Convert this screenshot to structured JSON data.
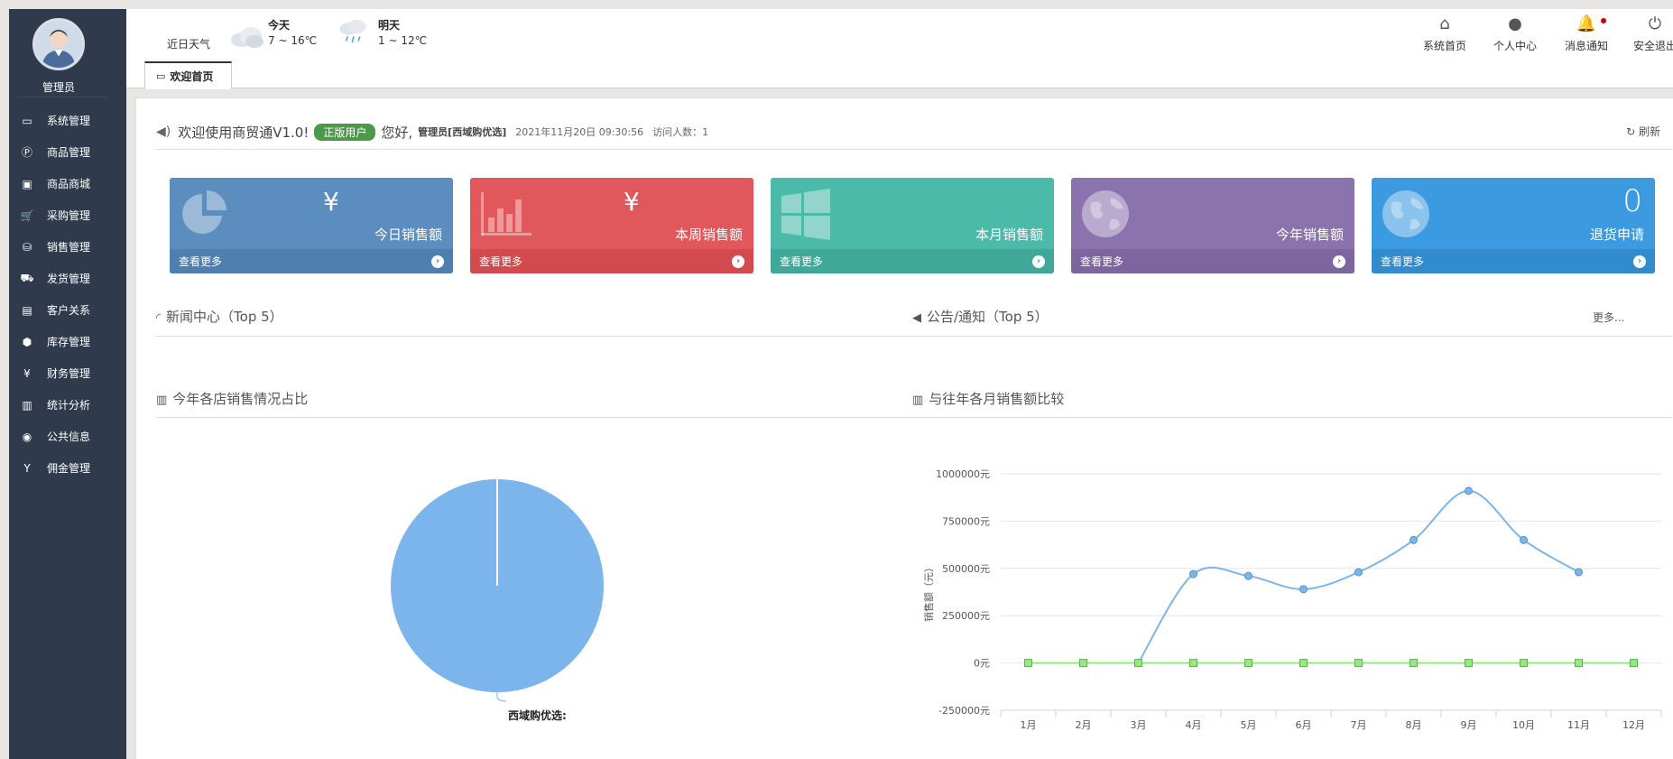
{
  "sidebar": {
    "user_name": "管理员",
    "items": [
      {
        "label": "系统管理",
        "icon": "monitor-icon",
        "glyph": "▭"
      },
      {
        "label": "商品管理",
        "icon": "product-p-icon",
        "glyph": "Ⓟ"
      },
      {
        "label": "商品商城",
        "icon": "mall-icon",
        "glyph": "▣"
      },
      {
        "label": "采购管理",
        "icon": "cart-icon",
        "glyph": "🛒"
      },
      {
        "label": "销售管理",
        "icon": "basket-icon",
        "glyph": "⛁"
      },
      {
        "label": "发货管理",
        "icon": "truck-icon",
        "glyph": "⛟"
      },
      {
        "label": "客户关系",
        "icon": "briefcase-icon",
        "glyph": "▤"
      },
      {
        "label": "库存管理",
        "icon": "cubes-icon",
        "glyph": "⬢"
      },
      {
        "label": "财务管理",
        "icon": "yen-icon",
        "glyph": "¥"
      },
      {
        "label": "统计分析",
        "icon": "bar-chart-icon",
        "glyph": "▥"
      },
      {
        "label": "公共信息",
        "icon": "globe-icon",
        "glyph": "◉"
      },
      {
        "label": "佣金管理",
        "icon": "commission-y-icon",
        "glyph": "Y"
      }
    ]
  },
  "header": {
    "weather_label": "近日天气",
    "today": {
      "day": "今天",
      "temp": "7 ~ 16℃"
    },
    "tomorrow": {
      "day": "明天",
      "temp": "1 ~ 12℃"
    },
    "links": [
      {
        "label": "系统首页",
        "icon": "home-icon",
        "glyph": "⌂"
      },
      {
        "label": "个人中心",
        "icon": "user-icon",
        "glyph": "●"
      },
      {
        "label": "消息通知",
        "icon": "bell-icon",
        "glyph": "🔔"
      },
      {
        "label": "安全退出",
        "icon": "power-icon",
        "glyph": "⏻"
      }
    ]
  },
  "tabs": [
    {
      "label": "欢迎首页"
    }
  ],
  "welcome": {
    "text": "欢迎使用商贸通V1.0!",
    "badge": "正版用户",
    "hello": "您好,",
    "user": "管理员[西域购优选]",
    "datetime": "2021年11月20日 09:30:56",
    "visits": "访问人数：1",
    "refresh": "刷新"
  },
  "cards": [
    {
      "label": "今日销售额",
      "value": "¥",
      "more": "查看更多",
      "color": "#5b8dbf",
      "foot_color": "#4f7fae"
    },
    {
      "label": "本周销售额",
      "value": "¥",
      "more": "查看更多",
      "color": "#e0585b",
      "foot_color": "#d24a4d"
    },
    {
      "label": "本月销售额",
      "value": "",
      "more": "查看更多",
      "color": "#4cbaa9",
      "foot_color": "#40a898"
    },
    {
      "label": "今年销售额",
      "value": "",
      "more": "查看更多",
      "color": "#8b74ad",
      "foot_color": "#7c669d"
    },
    {
      "label": "退货申请",
      "value": "0",
      "more": "查看更多",
      "color": "#3c9be0",
      "foot_color": "#328bcd"
    }
  ],
  "sections": {
    "news": "新闻中心（Top 5）",
    "notice": "公告/通知（Top 5）",
    "notice_more": "更多...",
    "pie_title": "今年各店销售情况占比",
    "line_title": "与往年各月销售额比较"
  },
  "chart_data": [
    {
      "type": "pie",
      "slices": [
        {
          "name": "西域购优选",
          "value": 100
        }
      ],
      "colors": [
        "#7cb5ec"
      ]
    },
    {
      "type": "line",
      "x": [
        "1月",
        "2月",
        "3月",
        "4月",
        "5月",
        "6月",
        "7月",
        "8月",
        "9月",
        "10月",
        "11月",
        "12月"
      ],
      "ylabel": "销售额（元）",
      "y_tick_suffix": "元",
      "ylim": [
        -250000,
        1000000
      ],
      "yticks": [
        -250000,
        0,
        250000,
        500000,
        750000,
        1000000
      ],
      "grid": true,
      "series": [
        {
          "values": [
            null,
            null,
            0,
            470000,
            460000,
            390000,
            480000,
            650000,
            910000,
            650000,
            480000,
            null
          ],
          "color": "#7cb5ec",
          "marker": "circle"
        },
        {
          "values": [
            0,
            0,
            0,
            0,
            0,
            0,
            0,
            0,
            0,
            0,
            0,
            0
          ],
          "color": "#90ed7d",
          "marker": "square"
        }
      ]
    }
  ]
}
